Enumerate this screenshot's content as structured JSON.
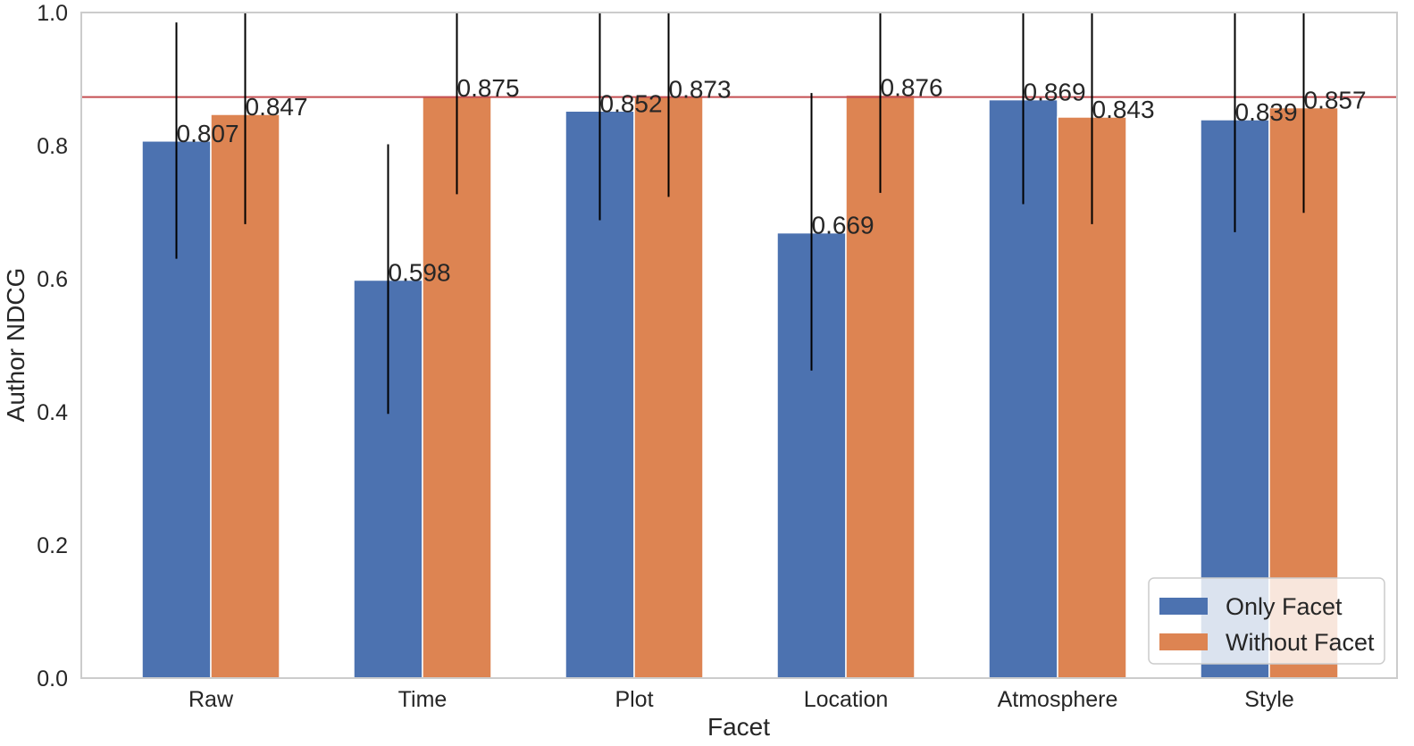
{
  "chart_data": {
    "type": "bar",
    "xlabel": "Facet",
    "ylabel": "Author NDCG",
    "categories": [
      "Raw",
      "Time",
      "Plot",
      "Location",
      "Atmosphere",
      "Style"
    ],
    "ylim": [
      0.0,
      1.0
    ],
    "yticks": [
      "0.0",
      "0.2",
      "0.4",
      "0.6",
      "0.8",
      "1.0"
    ],
    "grid": false,
    "legend_position": "bottom-right",
    "reference_line": {
      "y": 0.873,
      "color": "#c44e52"
    },
    "series": [
      {
        "name": "Only Facet",
        "color": "#4c72b0",
        "values": [
          0.807,
          0.598,
          0.852,
          0.669,
          0.869,
          0.839
        ],
        "labels": [
          "0.807",
          "0.598",
          "0.852",
          "0.669",
          "0.869",
          "0.839"
        ],
        "error_low": [
          0.63,
          0.397,
          0.688,
          0.462,
          0.712,
          0.67
        ],
        "error_high": [
          0.985,
          0.802,
          1.02,
          0.879,
          1.03,
          1.01
        ]
      },
      {
        "name": "Without Facet",
        "color": "#dd8452",
        "values": [
          0.847,
          0.875,
          0.873,
          0.876,
          0.843,
          0.857
        ],
        "labels": [
          "0.847",
          "0.875",
          "0.873",
          "0.876",
          "0.843",
          "0.857"
        ],
        "error_low": [
          0.682,
          0.727,
          0.723,
          0.729,
          0.682,
          0.699
        ],
        "error_high": [
          1.02,
          1.03,
          1.03,
          1.03,
          1.02,
          1.03
        ]
      }
    ]
  }
}
